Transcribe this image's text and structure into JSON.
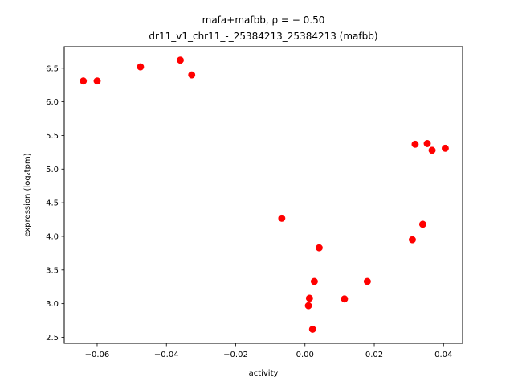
{
  "chart_data": {
    "type": "scatter",
    "title_line1": "mafa+mafbb, ρ = − 0.50",
    "title_line2": "dr11_v1_chr11_-_25384213_25384213 (mafbb)",
    "xlabel": "activity",
    "ylabel": "expression (log₂tpm)",
    "xlim": [
      -0.0695,
      0.0455
    ],
    "ylim": [
      2.41,
      6.82
    ],
    "xticks": [
      -0.06,
      -0.04,
      -0.02,
      0.0,
      0.02,
      0.04
    ],
    "xtick_labels": [
      "−0.06",
      "−0.04",
      "−0.02",
      "0.00",
      "0.02",
      "0.04"
    ],
    "yticks": [
      2.5,
      3.0,
      3.5,
      4.0,
      4.5,
      5.0,
      5.5,
      6.0,
      6.5
    ],
    "ytick_labels": [
      "2.5",
      "3.0",
      "3.5",
      "4.0",
      "4.5",
      "5.0",
      "5.5",
      "6.0",
      "6.5"
    ],
    "grid": false,
    "point_color": "#ff0000",
    "points": [
      {
        "x": -0.064,
        "y": 6.31
      },
      {
        "x": -0.06,
        "y": 6.31
      },
      {
        "x": -0.0475,
        "y": 6.52
      },
      {
        "x": -0.036,
        "y": 6.62
      },
      {
        "x": -0.0327,
        "y": 6.4
      },
      {
        "x": -0.0067,
        "y": 4.27
      },
      {
        "x": 0.001,
        "y": 2.97
      },
      {
        "x": 0.0013,
        "y": 3.08
      },
      {
        "x": 0.0022,
        "y": 2.62
      },
      {
        "x": 0.0027,
        "y": 3.33
      },
      {
        "x": 0.0041,
        "y": 3.83
      },
      {
        "x": 0.0114,
        "y": 3.07
      },
      {
        "x": 0.018,
        "y": 3.33
      },
      {
        "x": 0.031,
        "y": 3.95
      },
      {
        "x": 0.0318,
        "y": 5.37
      },
      {
        "x": 0.034,
        "y": 4.18
      },
      {
        "x": 0.0353,
        "y": 5.38
      },
      {
        "x": 0.0367,
        "y": 5.28
      },
      {
        "x": 0.0405,
        "y": 5.31
      }
    ]
  }
}
